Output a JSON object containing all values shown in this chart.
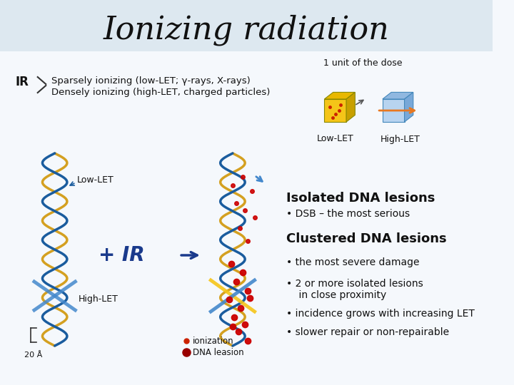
{
  "title": "Ionizing radiation",
  "title_fontsize": 32,
  "title_bg_color": "#dde8f0",
  "bg_color": "#f5f8fc",
  "ir_label": "IR",
  "line1": "Sparsely ionizing (low-LET; γ-rays, X-rays)",
  "line2": "Densely ionizing (high-LET, charged particles)",
  "dose_label": "1 unit of the dose",
  "low_let_label": "Low-LET",
  "high_let_label": "High-LET",
  "lowlet_dna": "Low-LET",
  "highlet_dna": "High-LET",
  "plus_ir": "+ IR",
  "arrow_color": "#1a3a8c",
  "isolated_title": "Isolated DNA lesions",
  "isolated_bullet": "• DSB – the most serious",
  "clustered_title": "Clustered DNA lesions",
  "bullet1": "• the most severe damage",
  "bullet2": "• 2 or more isolated lesions",
  "bullet2b": "    in close proximity",
  "bullet3": "• incidence grows with increasing LET",
  "bullet4": "• slower repair or non-repairable",
  "legend_ion": "ionization",
  "legend_dna": "DNA leasion",
  "angstrom_label": "20 Å",
  "red_color": "#cc0000",
  "blue_color": "#1a5c9e",
  "yellow_color": "#f0c020",
  "dark_blue": "#1a3a8c"
}
